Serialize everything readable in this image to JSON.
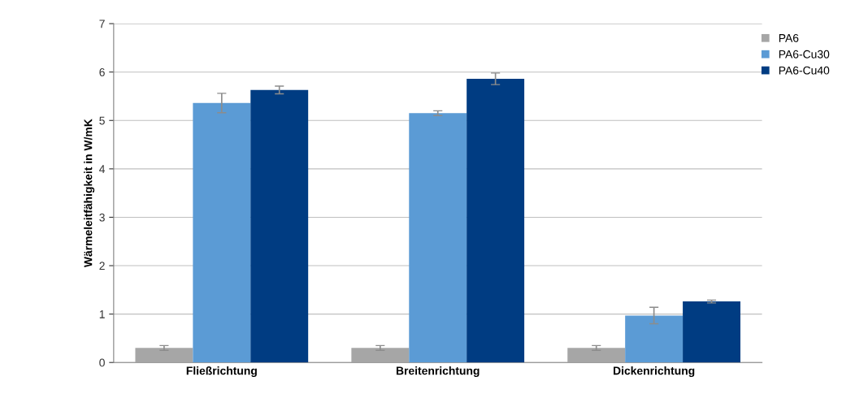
{
  "chart_data": {
    "type": "bar",
    "ylabel": "Wärmeleitfähigkeit in W/mK",
    "categories": [
      "Fließrichtung",
      "Breitenrichtung",
      "Dickenrichtung"
    ],
    "series": [
      {
        "name": "PA6",
        "color": "#a6a6a6",
        "values": [
          0.3,
          0.3,
          0.3
        ],
        "errors": [
          0.05,
          0.05,
          0.05
        ]
      },
      {
        "name": "PA6-Cu30",
        "color": "#5b9bd5",
        "values": [
          5.36,
          5.15,
          0.97
        ],
        "errors": [
          0.2,
          0.05,
          0.17
        ]
      },
      {
        "name": "PA6-Cu40",
        "color": "#003c82",
        "values": [
          5.63,
          5.86,
          1.26
        ],
        "errors": [
          0.08,
          0.12,
          0.03
        ]
      }
    ],
    "ylim": [
      0,
      7
    ],
    "yticks": [
      0,
      1,
      2,
      3,
      4,
      5,
      6,
      7
    ],
    "grid": "y",
    "legend": "top right"
  }
}
